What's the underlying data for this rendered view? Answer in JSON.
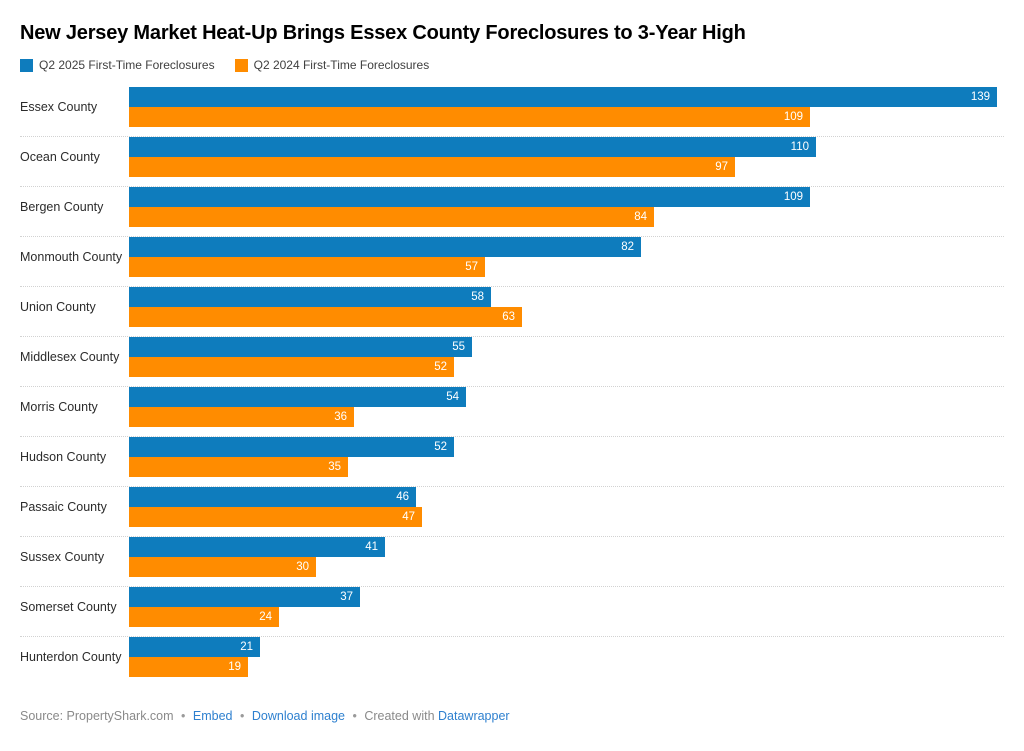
{
  "title": "New Jersey Market Heat-Up Brings Essex County Foreclosures to 3-Year High",
  "colors": {
    "series_2025": "#0e7cbd",
    "series_2024": "#ff8c00",
    "link_blue": "#2e80cf",
    "footer_gray": "#8a8a8a"
  },
  "chart_data": {
    "type": "bar",
    "orientation": "horizontal",
    "title": "New Jersey Market Heat-Up Brings Essex County Foreclosures to 3-Year High",
    "categories": [
      "Essex County",
      "Ocean County",
      "Bergen County",
      "Monmouth County",
      "Union County",
      "Middlesex County",
      "Morris County",
      "Hudson County",
      "Passaic County",
      "Sussex County",
      "Somerset County",
      "Hunterdon County"
    ],
    "series": [
      {
        "name": "Q2 2025 First-Time Foreclosures",
        "color": "#0e7cbd",
        "values": [
          139,
          110,
          109,
          82,
          58,
          55,
          54,
          52,
          46,
          41,
          37,
          21
        ]
      },
      {
        "name": "Q2 2024 First-Time Foreclosures",
        "color": "#ff8c00",
        "values": [
          109,
          97,
          84,
          57,
          63,
          52,
          36,
          35,
          47,
          30,
          24,
          19
        ]
      }
    ],
    "xmax": 139,
    "value_labels": "inside-end, white",
    "legend_position": "top-left",
    "grid": "off"
  },
  "footer": {
    "source": "Source: PropertyShark.com",
    "embed_link": "Embed",
    "download_link": "Download image",
    "created_with": "Created with",
    "tool_link": "Datawrapper",
    "separator": "•"
  }
}
